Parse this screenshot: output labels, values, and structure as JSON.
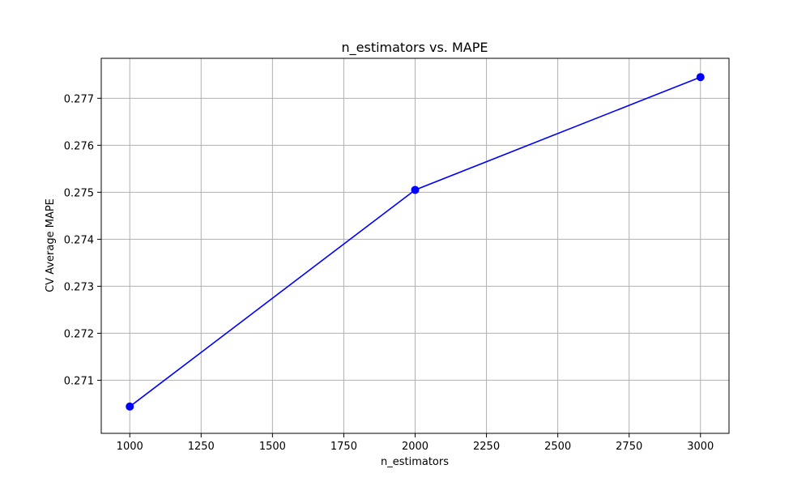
{
  "chart_data": {
    "type": "line",
    "title": "n_estimators vs. MAPE",
    "xlabel": "n_estimators",
    "ylabel": "CV Average MAPE",
    "x": [
      1000,
      2000,
      3000
    ],
    "series": [
      {
        "values": [
          0.27044,
          0.27505,
          0.27745
        ],
        "color": "#0000ff",
        "marker": "circle"
      }
    ],
    "xlim": [
      900,
      3100
    ],
    "ylim": [
      0.26987,
      0.27785
    ],
    "x_ticks": [
      1000,
      1250,
      1500,
      1750,
      2000,
      2250,
      2500,
      2750,
      3000
    ],
    "y_ticks": [
      0.271,
      0.272,
      0.273,
      0.274,
      0.275,
      0.276,
      0.277
    ],
    "x_tick_labels": [
      "1000",
      "1250",
      "1500",
      "1750",
      "2000",
      "2250",
      "2500",
      "2750",
      "3000"
    ],
    "y_tick_labels": [
      "0.271",
      "0.272",
      "0.273",
      "0.274",
      "0.275",
      "0.276",
      "0.277"
    ],
    "grid": true,
    "legend": false
  }
}
